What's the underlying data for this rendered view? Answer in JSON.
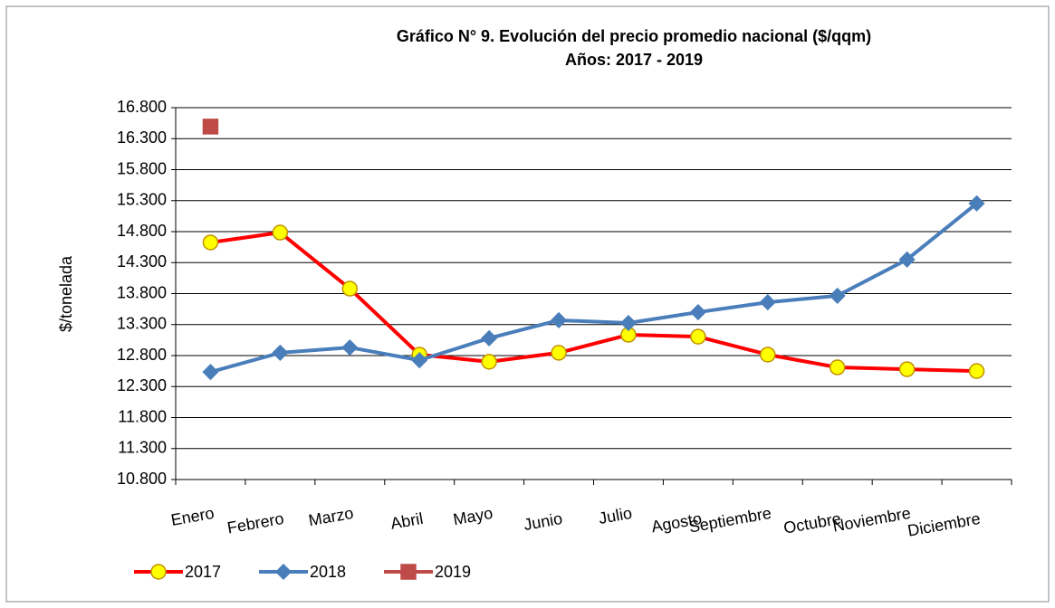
{
  "chart_data": {
    "type": "line",
    "title": "Gráfico N° 9. Evolución del precio promedio nacional ($/qqm)",
    "subtitle": "Años: 2017 - 2019",
    "y_label": "$/tonelada",
    "categories": [
      "Enero",
      "Febrero",
      "Marzo",
      "Abril",
      "Mayo",
      "Junio",
      "Julio",
      "Agosto",
      "Septiembre",
      "Octubre",
      "Noviembre",
      "Diciembre"
    ],
    "series": [
      {
        "name": "2017",
        "color": "#ff0000",
        "marker": "circle",
        "marker_fill": "#ffff00",
        "marker_stroke": "#c09000",
        "values": [
          14625,
          14785,
          13880,
          12815,
          12700,
          12845,
          13135,
          13105,
          12815,
          12610,
          12580,
          12550
        ]
      },
      {
        "name": "2018",
        "color": "#4a7ebb",
        "marker": "diamond",
        "marker_fill": "#4a7ebb",
        "marker_stroke": "#4a7ebb",
        "values": [
          12535,
          12845,
          12930,
          12725,
          13080,
          13370,
          13325,
          13500,
          13660,
          13765,
          14350,
          15255
        ]
      },
      {
        "name": "2019",
        "color": "#be4b48",
        "marker": "square",
        "marker_fill": "#be4b48",
        "marker_stroke": "#be4b48",
        "values": [
          16495,
          null,
          null,
          null,
          null,
          null,
          null,
          null,
          null,
          null,
          null,
          null
        ]
      }
    ],
    "ylim": [
      10800,
      16800
    ],
    "yticks": [
      {
        "value": 10800,
        "label": "10.800"
      },
      {
        "value": 11300,
        "label": "11.300"
      },
      {
        "value": 11800,
        "label": "11.800"
      },
      {
        "value": 12300,
        "label": "12.300"
      },
      {
        "value": 12800,
        "label": "12.800"
      },
      {
        "value": 13300,
        "label": "13.300"
      },
      {
        "value": 13800,
        "label": "13.800"
      },
      {
        "value": 14300,
        "label": "14.300"
      },
      {
        "value": 14800,
        "label": "14.800"
      },
      {
        "value": 15300,
        "label": "15.300"
      },
      {
        "value": 15800,
        "label": "15.800"
      },
      {
        "value": 16300,
        "label": "16.300"
      },
      {
        "value": 16800,
        "label": "16.800"
      }
    ],
    "grid": true,
    "legend": "bottom-left"
  }
}
